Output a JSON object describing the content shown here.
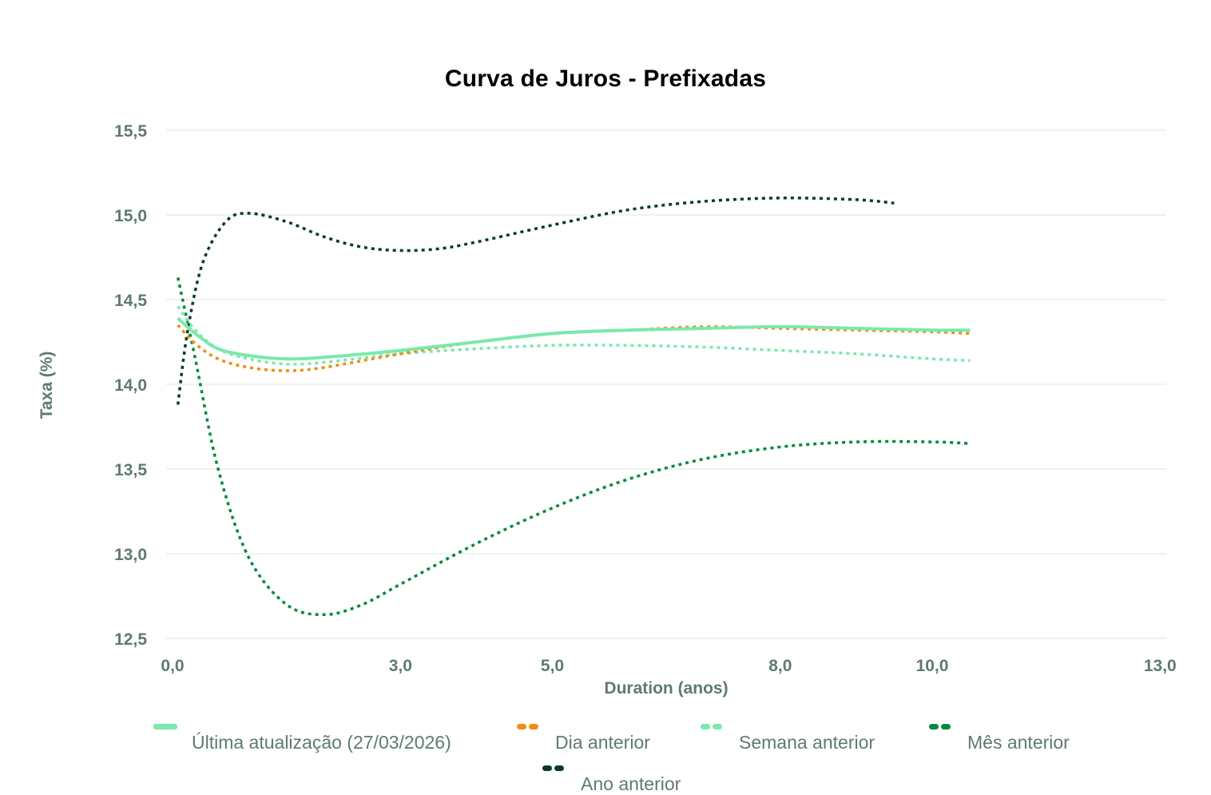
{
  "chart_data": {
    "type": "line",
    "title": "Curva de Juros - Prefixadas",
    "xlabel": "Duration (anos)",
    "ylabel": "Taxa (%)",
    "xlim": [
      0.0,
      13.0
    ],
    "ylim": [
      12.5,
      15.5
    ],
    "x_ticks": [
      "0,0",
      "3,0",
      "5,0",
      "8,0",
      "10,0",
      "13,0"
    ],
    "x_tick_values": [
      0,
      3,
      5,
      8,
      10,
      13
    ],
    "y_ticks": [
      "15,5",
      "15,0",
      "14,5",
      "14,0",
      "13,5",
      "13,0",
      "12,5"
    ],
    "y_tick_values": [
      15.5,
      15.0,
      14.5,
      14.0,
      13.5,
      13.0,
      12.5
    ],
    "grid": "horizontal",
    "legend_position": "bottom",
    "series": [
      {
        "name": "Última atualização (27/03/2026)",
        "color": "#7ae9ab",
        "style": "solid",
        "x": [
          0.07,
          0.3,
          0.6,
          1.0,
          1.5,
          2.0,
          3.0,
          4.0,
          5.0,
          6.0,
          7.0,
          8.0,
          9.0,
          10.0,
          10.5
        ],
        "y": [
          14.39,
          14.3,
          14.21,
          14.17,
          14.15,
          14.16,
          14.2,
          14.25,
          14.3,
          14.32,
          14.33,
          14.34,
          14.33,
          14.32,
          14.32
        ]
      },
      {
        "name": "Dia anterior",
        "color": "#f28c0e",
        "style": "dashed",
        "x": [
          0.07,
          0.3,
          0.6,
          1.0,
          1.5,
          2.0,
          3.0,
          4.0,
          5.0,
          6.0,
          7.0,
          8.0,
          9.0,
          10.0,
          10.5
        ],
        "y": [
          14.35,
          14.24,
          14.15,
          14.1,
          14.08,
          14.1,
          14.18,
          14.25,
          14.3,
          14.32,
          14.34,
          14.33,
          14.32,
          14.31,
          14.3
        ]
      },
      {
        "name": "Semana anterior",
        "color": "#7ae9ab",
        "style": "dashed",
        "x": [
          0.07,
          0.3,
          0.6,
          1.0,
          1.5,
          2.0,
          3.0,
          4.0,
          5.0,
          6.0,
          7.0,
          8.0,
          9.0,
          10.0,
          10.5
        ],
        "y": [
          14.46,
          14.32,
          14.21,
          14.15,
          14.12,
          14.13,
          14.18,
          14.21,
          14.23,
          14.23,
          14.22,
          14.2,
          14.18,
          14.15,
          14.14
        ]
      },
      {
        "name": "Mês anterior",
        "color": "#008a3e",
        "style": "dashed",
        "x": [
          0.07,
          0.3,
          0.6,
          1.0,
          1.5,
          2.0,
          2.5,
          3.0,
          4.0,
          5.0,
          6.0,
          7.0,
          8.0,
          9.0,
          10.0,
          10.5
        ],
        "y": [
          14.63,
          14.15,
          13.5,
          12.98,
          12.7,
          12.64,
          12.7,
          12.82,
          13.06,
          13.27,
          13.44,
          13.56,
          13.63,
          13.66,
          13.66,
          13.65
        ]
      },
      {
        "name": "Ano anterior",
        "color": "#073b2a",
        "style": "dashed",
        "x": [
          0.07,
          0.2,
          0.4,
          0.7,
          1.0,
          1.5,
          2.0,
          2.5,
          3.0,
          3.5,
          4.0,
          5.0,
          6.0,
          7.0,
          8.0,
          9.0,
          9.5
        ],
        "y": [
          13.88,
          14.32,
          14.72,
          14.96,
          15.01,
          14.96,
          14.87,
          14.81,
          14.79,
          14.8,
          14.84,
          14.94,
          15.03,
          15.08,
          15.1,
          15.09,
          15.07
        ]
      }
    ]
  },
  "legend": {
    "items": [
      {
        "label": "Última atualização (27/03/2026)",
        "color": "#7ae9ab",
        "style": "solid"
      },
      {
        "label": "Dia anterior",
        "color": "#f28c0e",
        "style": "dashed"
      },
      {
        "label": "Semana anterior",
        "color": "#7ae9ab",
        "style": "dashed"
      },
      {
        "label": "Mês anterior",
        "color": "#008a3e",
        "style": "dashed"
      },
      {
        "label": "Ano anterior",
        "color": "#073b2a",
        "style": "dashed"
      }
    ]
  }
}
